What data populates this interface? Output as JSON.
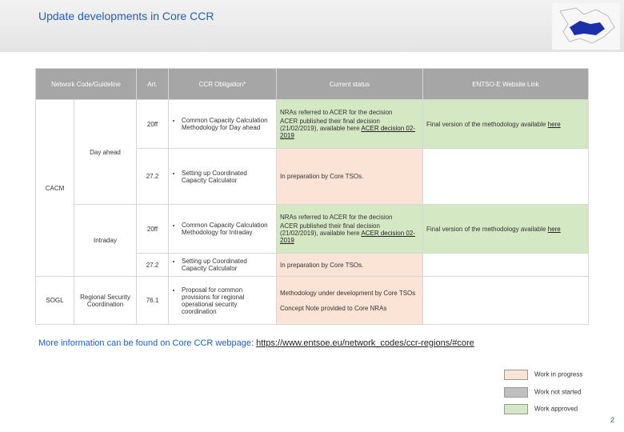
{
  "header": {
    "title": "Update developments in Core CCR"
  },
  "table": {
    "columns": [
      "Network Code/Guideline",
      "Art.",
      "CCR Obligation*",
      "Current status",
      "ENTSO-E Website Link"
    ],
    "groups": {
      "cacm": "CACM",
      "day_ahead": "Day ahead",
      "intraday": "Intraday",
      "sogl": "SOGL",
      "rsc": "Regional Security Coordination"
    },
    "rows": [
      {
        "art": "20ff",
        "obligation": "Common Capacity Calculation Methodology for Day ahead",
        "status": [
          "NRAs referred to ACER for the decision",
          "ACER published their final decision (21/02/2019), available here",
          "ACER decision 02-2019"
        ],
        "link": [
          "Final version of the methodology available",
          "here"
        ]
      },
      {
        "art": "27.2",
        "obligation": "Setting up Coordinated Capacity Calculator",
        "status": [
          "In preparation by Core TSOs."
        ]
      },
      {
        "art": "20ff",
        "obligation": "Common Capacity Calculation Methodology for Intraday",
        "status": [
          "NRAs referred to ACER for the decision",
          "ACER published their final decision (21/02/2019), available here",
          "ACER decision 02-2019"
        ],
        "link": [
          "Final version of the methodology available",
          "here"
        ]
      },
      {
        "art": "27.2",
        "obligation": "Setting up Coordinated Capacity Calculator",
        "status": [
          "In preparation by Core TSOs."
        ]
      },
      {
        "art": "76.1",
        "obligation": "Proposal for common provisions for regional operational security coordination",
        "status": [
          "Methodology under development by Core TSOs",
          "Concept Note provided to Core NRAs"
        ]
      }
    ]
  },
  "footer": {
    "text": "More information can be found on Core CCR webpage:",
    "url": "https://www.entsoe.eu/network_codes/ccr-regions/#core"
  },
  "legend": [
    "Work in progress",
    "Work not started",
    "Work approved"
  ],
  "page_number": "2"
}
